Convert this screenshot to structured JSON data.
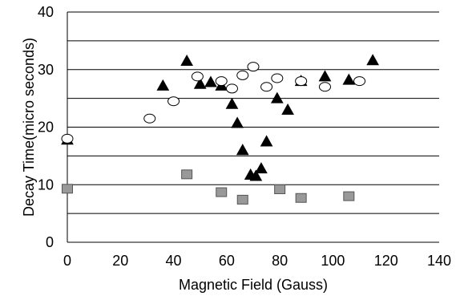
{
  "chart_data": {
    "type": "scatter",
    "xlabel": "Magnetic Field (Gauss)",
    "ylabel": "Decay Time(micro seconds)",
    "xlim": [
      0,
      140
    ],
    "ylim": [
      0,
      40
    ],
    "x_ticks": [
      "0",
      "20",
      "40",
      "60",
      "80",
      "100",
      "120",
      "140"
    ],
    "y_ticks": [
      "0",
      "10",
      "20",
      "30",
      "40"
    ],
    "y_gridlines": [
      5,
      10,
      15,
      20,
      25,
      30,
      35,
      40
    ],
    "grid": "horizontal",
    "legend": "none",
    "series": [
      {
        "marker": "triangle",
        "color": "#000000",
        "points": [
          [
            0,
            17.8
          ],
          [
            36,
            27.2
          ],
          [
            45,
            31.5
          ],
          [
            50,
            27.5
          ],
          [
            54,
            27.8
          ],
          [
            58,
            27.2
          ],
          [
            62,
            24.0
          ],
          [
            64,
            20.7
          ],
          [
            66,
            16.0
          ],
          [
            69,
            11.7
          ],
          [
            71,
            11.5
          ],
          [
            73,
            12.8
          ],
          [
            75,
            17.5
          ],
          [
            79,
            25.0
          ],
          [
            83,
            23.0
          ],
          [
            88,
            28.0
          ],
          [
            97,
            28.8
          ],
          [
            106,
            28.2
          ],
          [
            115,
            31.6
          ]
        ]
      },
      {
        "marker": "circle",
        "color": "#ffffff",
        "points": [
          [
            0,
            18.0
          ],
          [
            31,
            21.5
          ],
          [
            40,
            24.5
          ],
          [
            49,
            28.8
          ],
          [
            58,
            28.0
          ],
          [
            62,
            26.7
          ],
          [
            66,
            29.0
          ],
          [
            70,
            30.5
          ],
          [
            75,
            27.0
          ],
          [
            79,
            28.5
          ],
          [
            88,
            28.0
          ],
          [
            97,
            27.0
          ],
          [
            110,
            28.0
          ]
        ]
      },
      {
        "marker": "square",
        "color": "#999999",
        "points": [
          [
            0,
            9.3
          ],
          [
            45,
            11.8
          ],
          [
            58,
            8.7
          ],
          [
            66,
            7.4
          ],
          [
            80,
            9.2
          ],
          [
            88,
            7.7
          ],
          [
            106,
            8.0
          ]
        ]
      }
    ]
  }
}
